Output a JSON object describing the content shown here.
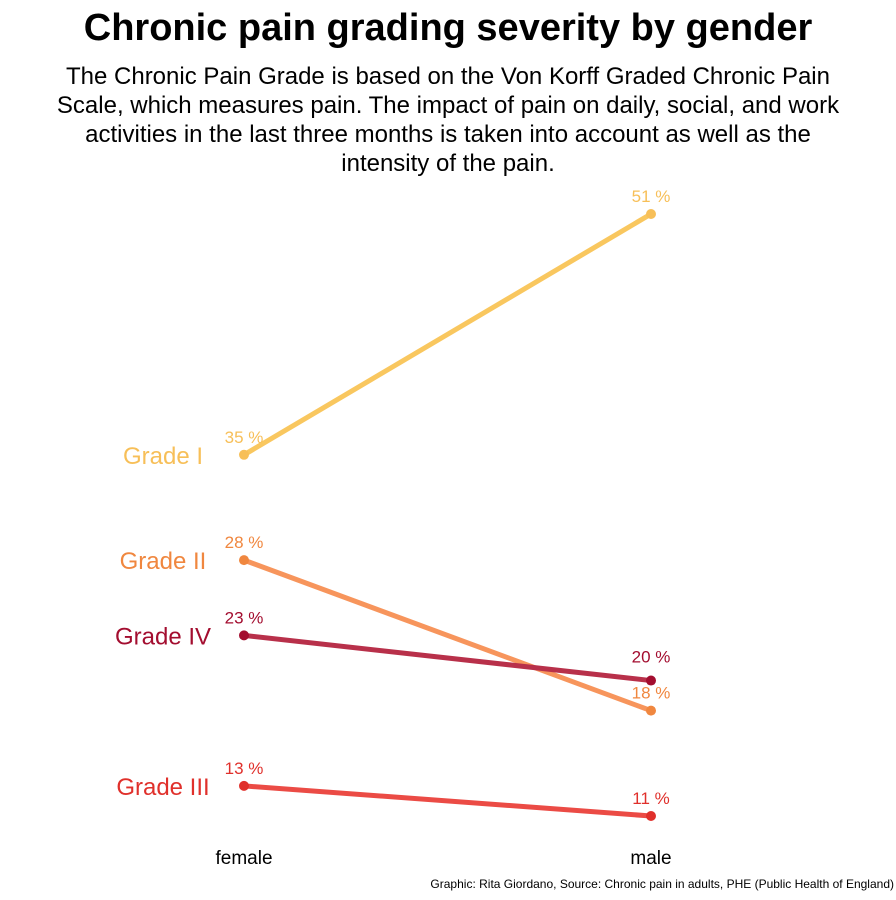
{
  "header": {
    "title": "Chronic pain grading severity by gender",
    "subtitle": "The Chronic Pain Grade is based on the Von Korff Graded Chronic Pain Scale, which measures pain. The impact of pain on daily, social, and work activities in the last three months is taken into account as well as the intensity of the pain."
  },
  "caption": "Graphic: Rita Giordano, Source: Chronic pain in adults, PHE (Public Health of England)",
  "chart_data": {
    "type": "line",
    "chart_style": "slope",
    "title": "Chronic pain grading severity by gender",
    "categories": [
      "female",
      "male"
    ],
    "ylim": [
      0,
      60
    ],
    "unit_suffix": " %",
    "grid": false,
    "legend": "direct labels at left",
    "series": [
      {
        "name": "Grade I",
        "values": [
          35,
          51
        ],
        "color": "#f9c75f",
        "label_color": "#f7bf58"
      },
      {
        "name": "Grade II",
        "values": [
          28,
          18
        ],
        "color": "#f7955c",
        "label_color": "#f0873f"
      },
      {
        "name": "Grade IV",
        "values": [
          23,
          20
        ],
        "color": "#b8304a",
        "label_color": "#a30d2f"
      },
      {
        "name": "Grade III",
        "values": [
          13,
          11
        ],
        "color": "#eb4b45",
        "label_color": "#e0302b"
      }
    ]
  }
}
